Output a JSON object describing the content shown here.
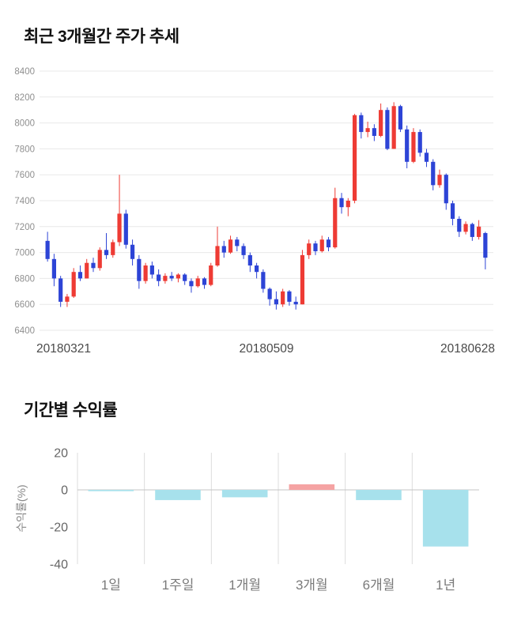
{
  "sections": {
    "price_trend_title": "최근 3개월간 주가 추세",
    "returns_title": "기간별 수익률"
  },
  "chart_data": [
    {
      "type": "candlestick",
      "title": "최근 3개월간 주가 추세",
      "ylim": [
        6400,
        8400
      ],
      "yticks": [
        8400,
        8200,
        8000,
        7800,
        7600,
        7400,
        7200,
        7000,
        6800,
        6600,
        6400
      ],
      "xticklabels": [
        "20180321",
        "20180509",
        "20180628"
      ],
      "grid": true,
      "up_color": "#ee3b34",
      "down_color": "#2d44d6",
      "grid_color": "#e8e8e8",
      "tick_color": "#8f8f8f",
      "xlabel_color": "#4a4a4a",
      "candles": [
        [
          7090,
          7160,
          6930,
          6950
        ],
        [
          6950,
          6990,
          6740,
          6800
        ],
        [
          6800,
          6820,
          6580,
          6620
        ],
        [
          6620,
          6680,
          6580,
          6660
        ],
        [
          6660,
          6880,
          6650,
          6850
        ],
        [
          6850,
          6900,
          6780,
          6800
        ],
        [
          6800,
          6950,
          6800,
          6920
        ],
        [
          6920,
          6960,
          6850,
          6880
        ],
        [
          6880,
          7040,
          6860,
          7020
        ],
        [
          7020,
          7150,
          6950,
          6980
        ],
        [
          6980,
          7100,
          6960,
          7080
        ],
        [
          7080,
          7600,
          7050,
          7300
        ],
        [
          7300,
          7330,
          7030,
          7060
        ],
        [
          7060,
          7100,
          6900,
          6950
        ],
        [
          6950,
          6980,
          6720,
          6780
        ],
        [
          6780,
          6920,
          6760,
          6900
        ],
        [
          6900,
          6930,
          6800,
          6830
        ],
        [
          6830,
          6870,
          6740,
          6780
        ],
        [
          6780,
          6840,
          6760,
          6820
        ],
        [
          6820,
          6850,
          6780,
          6800
        ],
        [
          6800,
          6840,
          6770,
          6830
        ],
        [
          6830,
          6840,
          6750,
          6780
        ],
        [
          6780,
          6800,
          6690,
          6740
        ],
        [
          6740,
          6820,
          6730,
          6800
        ],
        [
          6800,
          6810,
          6720,
          6750
        ],
        [
          6750,
          6920,
          6740,
          6900
        ],
        [
          6900,
          7200,
          6890,
          7050
        ],
        [
          7050,
          7090,
          6960,
          7000
        ],
        [
          7000,
          7130,
          6990,
          7100
        ],
        [
          7100,
          7120,
          7010,
          7050
        ],
        [
          7050,
          7070,
          6950,
          6980
        ],
        [
          6980,
          7000,
          6850,
          6900
        ],
        [
          6900,
          6920,
          6800,
          6850
        ],
        [
          6850,
          6870,
          6690,
          6720
        ],
        [
          6720,
          6730,
          6590,
          6640
        ],
        [
          6640,
          6700,
          6560,
          6600
        ],
        [
          6600,
          6720,
          6580,
          6700
        ],
        [
          6700,
          6710,
          6590,
          6620
        ],
        [
          6620,
          6660,
          6560,
          6600
        ],
        [
          6600,
          7020,
          6600,
          6980
        ],
        [
          6980,
          7100,
          6950,
          7070
        ],
        [
          7070,
          7090,
          6980,
          7010
        ],
        [
          7010,
          7130,
          7000,
          7100
        ],
        [
          7100,
          7120,
          7010,
          7040
        ],
        [
          7040,
          7500,
          7030,
          7420
        ],
        [
          7420,
          7460,
          7300,
          7350
        ],
        [
          7350,
          7420,
          7280,
          7400
        ],
        [
          7400,
          8070,
          7380,
          8060
        ],
        [
          8060,
          8080,
          7880,
          7930
        ],
        [
          7930,
          8010,
          7890,
          7960
        ],
        [
          7960,
          7990,
          7860,
          7900
        ],
        [
          7900,
          8150,
          7890,
          8100
        ],
        [
          8100,
          8120,
          7790,
          7800
        ],
        [
          7800,
          8160,
          7800,
          8130
        ],
        [
          8130,
          8140,
          7930,
          7950
        ],
        [
          7950,
          7980,
          7650,
          7700
        ],
        [
          7700,
          7960,
          7690,
          7930
        ],
        [
          7930,
          7950,
          7740,
          7770
        ],
        [
          7770,
          7800,
          7660,
          7700
        ],
        [
          7700,
          7720,
          7480,
          7520
        ],
        [
          7520,
          7640,
          7500,
          7600
        ],
        [
          7600,
          7610,
          7330,
          7380
        ],
        [
          7380,
          7400,
          7210,
          7260
        ],
        [
          7260,
          7280,
          7120,
          7160
        ],
        [
          7160,
          7240,
          7140,
          7220
        ],
        [
          7220,
          7230,
          7090,
          7120
        ],
        [
          7120,
          7250,
          7100,
          7200
        ],
        [
          7150,
          7160,
          6870,
          6960
        ]
      ]
    },
    {
      "type": "bar",
      "title": "기간별 수익률",
      "categories": [
        "1일",
        "1주일",
        "1개월",
        "3개월",
        "6개월",
        "1년"
      ],
      "values": [
        -0.7,
        -5.5,
        -4,
        3,
        -5.5,
        -30.5
      ],
      "ylabel": "수익률(%)",
      "yticks": [
        20,
        0,
        -20,
        -40
      ],
      "ylim": [
        -40,
        20
      ],
      "grid": true,
      "positive_color": "#f5a3a3",
      "negative_color": "#a7e1ec",
      "grid_color": "#dddddd",
      "axis_color": "#c4c4c4",
      "tick_color": "#666666",
      "category_color": "#7a7a7a",
      "ylabel_color": "#888888"
    }
  ]
}
